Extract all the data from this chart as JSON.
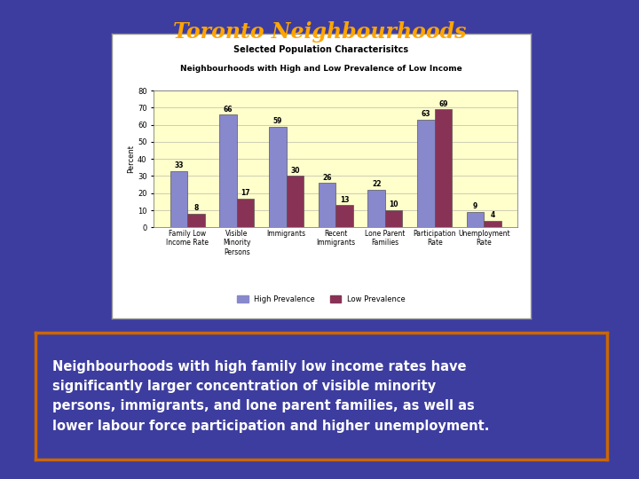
{
  "title": "Toronto Neighbourhoods",
  "background_color": "#3D3DA0",
  "title_color": "#FFA500",
  "chart_title_line1": "Selected Population Characterisitcs",
  "chart_title_line2": "Neighbourhoods with High and Low Prevalence of Low Income",
  "categories": [
    "Family Low\nIncome Rate",
    "Visible\nMinority\nPersons",
    "Immigrants",
    "Recent\nImmigrants",
    "Lone Parent\nFamilies",
    "Participation\nRate",
    "Unemployment\nRate"
  ],
  "high_prevalence": [
    33,
    66,
    59,
    26,
    22,
    63,
    9
  ],
  "low_prevalence": [
    8,
    17,
    30,
    13,
    10,
    69,
    4
  ],
  "high_color": "#8888CC",
  "low_color": "#883355",
  "ylabel": "Percent",
  "ylim": [
    0,
    80
  ],
  "yticks": [
    0,
    10,
    20,
    30,
    40,
    50,
    60,
    70,
    80
  ],
  "legend_high": "High Prevalence",
  "legend_low": "Low Prevalence",
  "chart_bg": "#FFFFCC",
  "chart_outer_bg": "#FFFFFF",
  "text_body_lines": [
    "Neighbourhoods with high family low income rates have",
    "significantly larger concentration of visible minority",
    "persons, immigrants, and lone parent families, as well as",
    "lower labour force participation and higher unemployment."
  ],
  "text_color": "#FFFFFF",
  "box_edge_color": "#CC6600"
}
